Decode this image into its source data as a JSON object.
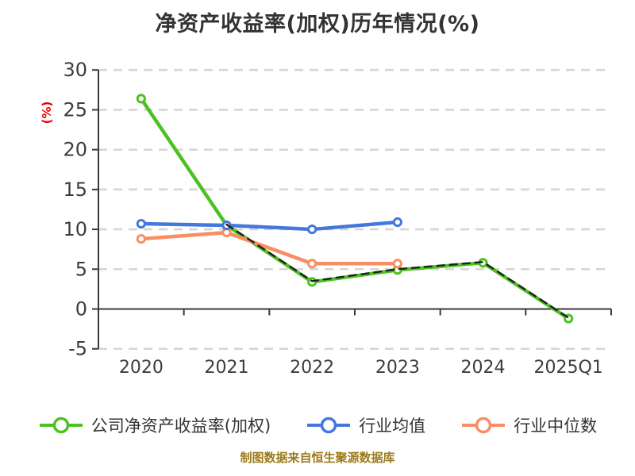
{
  "title": "净资产收益率(加权)历年情况(%)",
  "footer": "制图数据来自恒生聚源数据库",
  "colors": {
    "background": "#FFFFFF",
    "title_color": "#333333",
    "axis_color": "#3A3A3A",
    "tick_label_color": "#3D3D3D",
    "grid_color": "#D6D6D6",
    "y_unit_label_color": "#E60000",
    "footer_color": "#9C7A1A",
    "legend_text_color": "#333333",
    "marker_fill": "#FFFFFF",
    "company_green": "#4CC222",
    "industry_mean_blue": "#4478DD",
    "industry_median_orange": "#F98E64",
    "overlay_dash_black": "#1F1F1F"
  },
  "chart_data": {
    "type": "line",
    "title": "净资产收益率(加权)历年情况(%)",
    "categories": [
      "2020",
      "2021",
      "2022",
      "2023",
      "2024",
      "2025Q1"
    ],
    "series": [
      {
        "name": "公司净资产收益率(加权)",
        "color": "#4CC222",
        "marker": "circle-white",
        "in_legend": true,
        "values": [
          26.4,
          10.5,
          3.4,
          4.9,
          5.8,
          -1.2
        ]
      },
      {
        "name": "行业均值",
        "color": "#4478DD",
        "marker": "circle-white",
        "in_legend": true,
        "values": [
          10.7,
          10.5,
          10.0,
          10.9,
          null,
          null
        ]
      },
      {
        "name": "行业中位数",
        "color": "#F98E64",
        "marker": "circle-white",
        "in_legend": true,
        "values": [
          8.8,
          9.6,
          5.7,
          5.7,
          null,
          null
        ]
      },
      {
        "name": "dashed-overlay",
        "color": "#1F1F1F",
        "marker": "none",
        "in_legend": false,
        "style": "dashed",
        "values": [
          null,
          10.6,
          3.5,
          5.0,
          5.9,
          -1.1
        ]
      }
    ],
    "legend": [
      "公司净资产收益率(加权)",
      "行业均值",
      "行业中位数"
    ],
    "legend_position": "bottom",
    "xlabel": "",
    "ylabel": "(%)",
    "ylim": [
      -5,
      30
    ],
    "ytick_step": 5,
    "ytick_labels": [
      "30",
      "25",
      "20",
      "15",
      "10",
      "5",
      "0",
      "-5"
    ],
    "grid": "dashed",
    "x_axis_at_zero": true
  }
}
